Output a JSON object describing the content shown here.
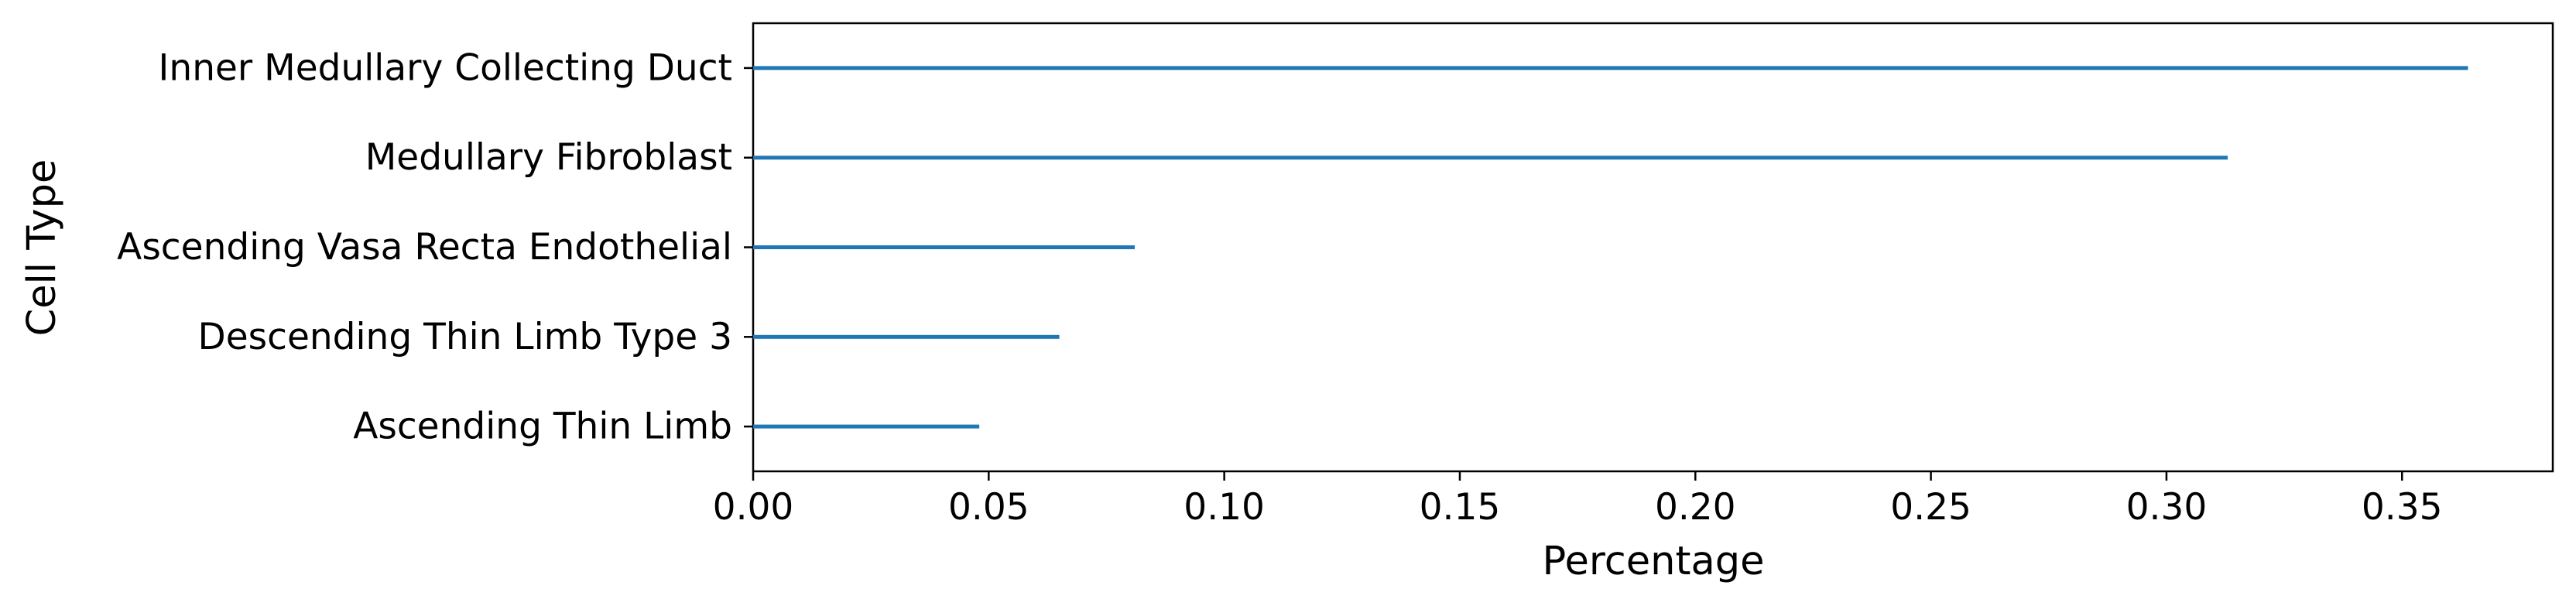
{
  "chart_data": {
    "type": "bar",
    "orientation": "horizontal",
    "title": "",
    "xlabel": "Percentage",
    "ylabel": "Cell Type",
    "categories": [
      "Inner Medullary Collecting Duct",
      "Medullary Fibroblast",
      "Ascending Vasa Recta Endothelial",
      "Descending Thin Limb Type 3",
      "Ascending Thin Limb"
    ],
    "values": [
      0.364,
      0.313,
      0.081,
      0.065,
      0.048
    ],
    "xlim": [
      0,
      0.382
    ],
    "xticks": [
      "0.00",
      "0.05",
      "0.10",
      "0.15",
      "0.20",
      "0.25",
      "0.30",
      "0.35"
    ],
    "grid": false,
    "legend": "none",
    "bar_color": "#1f77b4"
  }
}
